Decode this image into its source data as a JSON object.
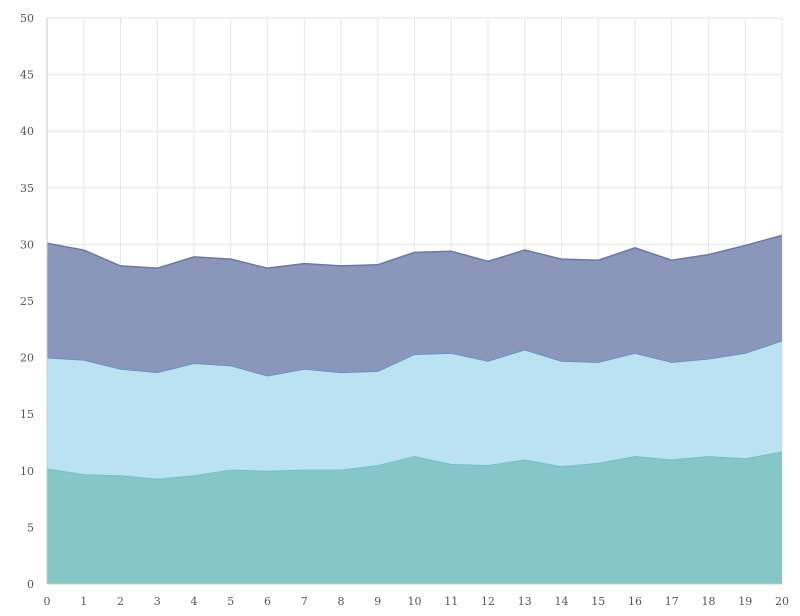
{
  "chart_data": {
    "type": "area",
    "stacked": true,
    "title": "",
    "xlabel": "",
    "ylabel": "",
    "x": [
      0,
      1,
      2,
      3,
      4,
      5,
      6,
      7,
      8,
      9,
      10,
      11,
      12,
      13,
      14,
      15,
      16,
      17,
      18,
      19,
      20
    ],
    "xlim": [
      0,
      20
    ],
    "ylim": [
      0,
      50
    ],
    "y_ticks": [
      0,
      5,
      10,
      15,
      20,
      25,
      30,
      35,
      40,
      45,
      50
    ],
    "grid": true,
    "legend": "none",
    "series": [
      {
        "color": "#85c6c9",
        "line_color": "#6cbcc2",
        "values": [
          10.2,
          9.7,
          9.6,
          9.3,
          9.6,
          10.1,
          10.0,
          10.1,
          10.1,
          10.5,
          11.3,
          10.6,
          10.5,
          11.0,
          10.4,
          10.7,
          11.3,
          11.0,
          11.3,
          11.1,
          11.7
        ]
      },
      {
        "color": "#bae2f0",
        "line_color": "#5b8fc4",
        "values": [
          9.8,
          10.1,
          9.4,
          9.4,
          9.9,
          9.2,
          8.4,
          8.9,
          8.6,
          8.3,
          9.0,
          9.8,
          9.2,
          9.7,
          9.3,
          8.9,
          9.1,
          8.6,
          8.6,
          9.3,
          9.8
        ]
      },
      {
        "color": "#8a97bb",
        "line_color": "#6b78a8",
        "values": [
          10.1,
          9.7,
          9.1,
          9.2,
          9.4,
          9.4,
          9.5,
          9.3,
          9.4,
          9.4,
          9.0,
          9.0,
          8.8,
          8.8,
          9.0,
          9.0,
          9.3,
          9.0,
          9.2,
          9.5,
          9.3
        ]
      }
    ]
  }
}
